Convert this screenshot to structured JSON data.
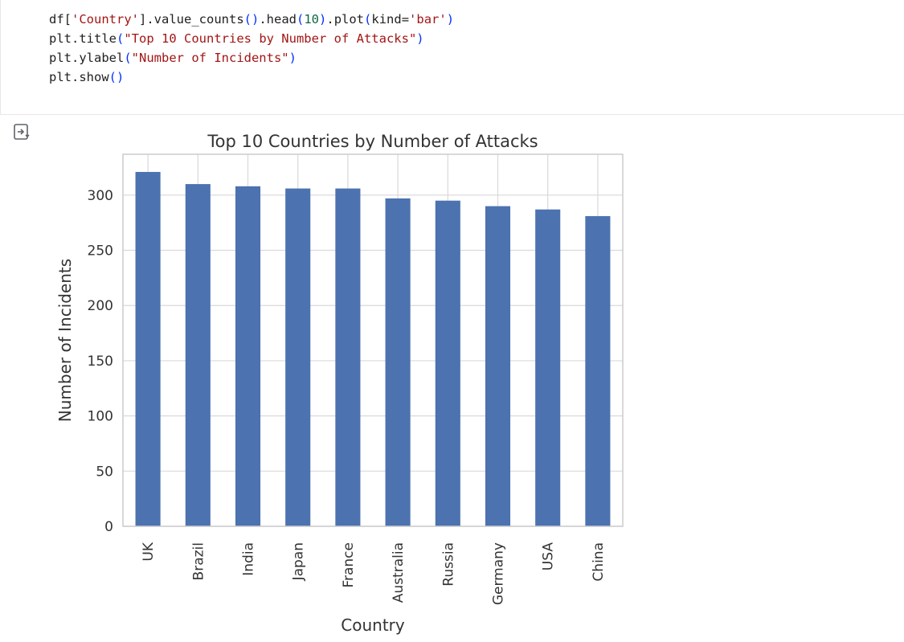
{
  "code": {
    "lines": [
      [
        {
          "t": "df[",
          "c": "default"
        },
        {
          "t": "'Country'",
          "c": "str"
        },
        {
          "t": "].value_counts",
          "c": "default"
        },
        {
          "t": "()",
          "c": "paren"
        },
        {
          "t": ".head",
          "c": "default"
        },
        {
          "t": "(",
          "c": "paren"
        },
        {
          "t": "10",
          "c": "num"
        },
        {
          "t": ")",
          "c": "paren"
        },
        {
          "t": ".plot",
          "c": "default"
        },
        {
          "t": "(",
          "c": "paren"
        },
        {
          "t": "kind=",
          "c": "default"
        },
        {
          "t": "'bar'",
          "c": "str"
        },
        {
          "t": ")",
          "c": "paren"
        }
      ],
      [
        {
          "t": "plt.title",
          "c": "default"
        },
        {
          "t": "(",
          "c": "paren"
        },
        {
          "t": "\"Top 10 Countries by Number of Attacks\"",
          "c": "str"
        },
        {
          "t": ")",
          "c": "paren"
        }
      ],
      [
        {
          "t": "plt.ylabel",
          "c": "default"
        },
        {
          "t": "(",
          "c": "paren"
        },
        {
          "t": "\"Number of Incidents\"",
          "c": "str"
        },
        {
          "t": ")",
          "c": "paren"
        }
      ],
      [
        {
          "t": "plt.show",
          "c": "default"
        },
        {
          "t": "()",
          "c": "paren"
        }
      ]
    ]
  },
  "output": {
    "toggle_icon": "output-toggle-icon"
  },
  "colors": {
    "bar": "#4c72b0",
    "grid": "#d9d9d9",
    "axes_border": "#cccccc",
    "text": "#333333"
  },
  "chart_data": {
    "type": "bar",
    "title": "Top 10 Countries by Number of Attacks",
    "xlabel": "Country",
    "ylabel": "Number of Incidents",
    "categories": [
      "UK",
      "Brazil",
      "India",
      "Japan",
      "France",
      "Australia",
      "Russia",
      "Germany",
      "USA",
      "China"
    ],
    "values": [
      321,
      310,
      308,
      306,
      306,
      297,
      295,
      290,
      287,
      281
    ],
    "yticks": [
      0,
      50,
      100,
      150,
      200,
      250,
      300
    ],
    "ylim": [
      0,
      337
    ],
    "grid": true,
    "legend": "none"
  }
}
